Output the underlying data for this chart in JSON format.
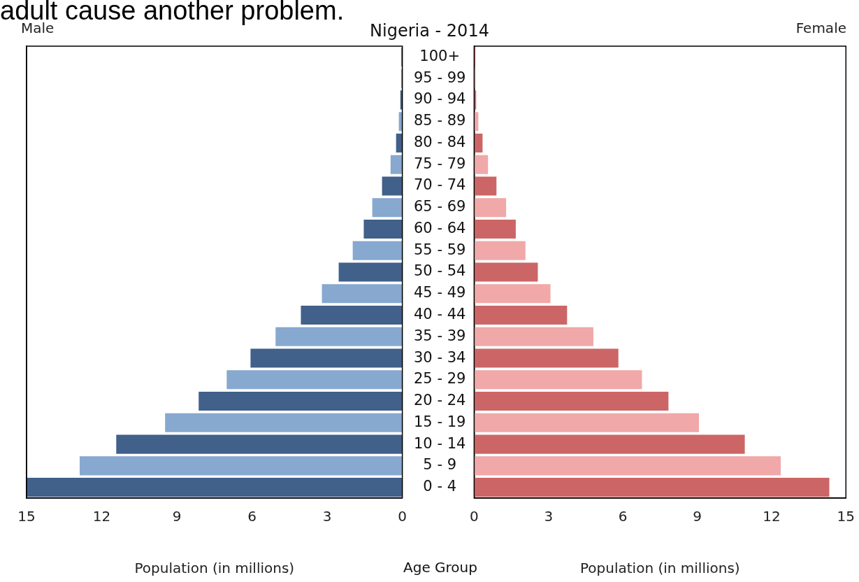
{
  "chart_data": [
    {
      "type": "bar",
      "orientation": "horizontal",
      "title": "Male",
      "xlabel": "Population (in millions)",
      "annotations": [
        "adult cause another problem.",
        "Nigeria - 2014"
      ],
      "tick_labels": "x",
      "values": [
        0.04,
        0.05,
        0.08,
        0.14,
        0.25,
        0.47,
        0.81,
        1.2,
        1.54,
        1.98,
        2.54,
        3.21,
        4.05,
        5.06,
        6.06,
        7.01,
        8.13,
        9.47,
        11.42,
        12.88,
        15.0
      ],
      "colors": [
        "#41608a",
        "#87a8cf",
        "#41608a",
        "#87a8cf",
        "#41608a",
        "#87a8cf",
        "#41608a",
        "#87a8cf",
        "#41608a",
        "#87a8cf",
        "#41608a",
        "#87a8cf",
        "#41608a",
        "#87a8cf",
        "#41608a",
        "#87a8cf",
        "#41608a",
        "#87a8cf",
        "#41608a",
        "#87a8cf",
        "#41608a"
      ],
      "xlim": [
        15,
        0
      ],
      "xticks": [
        15,
        12,
        9,
        6,
        3,
        0
      ]
    },
    {
      "type": "bar",
      "orientation": "horizontal",
      "title": "Female",
      "xlabel": "Population (in millions)",
      "ylabel": "Age Group",
      "categories": [
        "100+",
        "95 - 99",
        "90 - 94",
        "85 - 89",
        "80 - 84",
        "75 - 79",
        "70 - 74",
        "65 - 69",
        "60 - 64",
        "55 - 59",
        "50 - 54",
        "45 - 49",
        "40 - 44",
        "35 - 39",
        "30 - 34",
        "25 - 29",
        "20 - 24",
        "15 - 19",
        "10 - 14",
        "5 - 9",
        "0 - 4"
      ],
      "values": [
        0.05,
        0.06,
        0.08,
        0.17,
        0.34,
        0.56,
        0.9,
        1.29,
        1.68,
        2.07,
        2.57,
        3.08,
        3.75,
        4.81,
        5.82,
        6.77,
        7.84,
        9.07,
        10.92,
        12.37,
        14.33
      ],
      "colors": [
        "#cc6666",
        "#f0a8a8",
        "#cc6666",
        "#f0a8a8",
        "#cc6666",
        "#f0a8a8",
        "#cc6666",
        "#f0a8a8",
        "#cc6666",
        "#f0a8a8",
        "#cc6666",
        "#f0a8a8",
        "#cc6666",
        "#f0a8a8",
        "#cc6666",
        "#f0a8a8",
        "#cc6666",
        "#f0a8a8",
        "#cc6666",
        "#f0a8a8",
        "#cc6666"
      ],
      "xlim": [
        0,
        15
      ],
      "xticks": [
        0,
        3,
        6,
        9,
        12,
        15
      ]
    }
  ]
}
